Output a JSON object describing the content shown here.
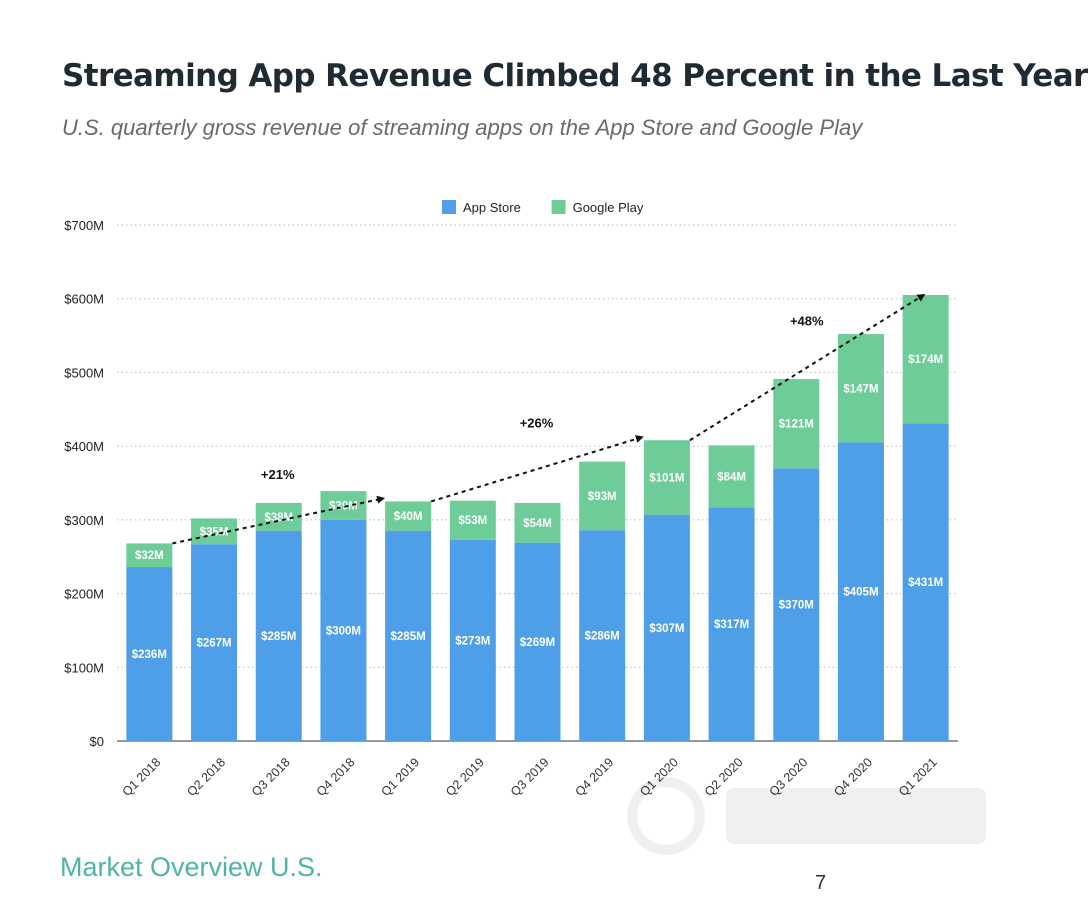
{
  "title": "Streaming App Revenue Climbed 48 Percent in the Last Year",
  "subtitle": "U.S. quarterly gross revenue of streaming apps on the App Store and Google Play",
  "footer": {
    "section": "Market Overview U.S.",
    "page_number": "7"
  },
  "colors": {
    "app_store": "#4e9fe8",
    "google_play": "#6dcc97",
    "title": "#1f2b33",
    "footer_text": "#4fb3a6"
  },
  "chart_data": {
    "type": "bar",
    "stacked": true,
    "title": "",
    "xlabel": "",
    "ylabel": "",
    "ylim": [
      0,
      700
    ],
    "y_ticks": [
      "$0",
      "$100M",
      "$200M",
      "$300M",
      "$400M",
      "$500M",
      "$600M",
      "$700M"
    ],
    "y_tick_values": [
      0,
      100,
      200,
      300,
      400,
      500,
      600,
      700
    ],
    "categories": [
      "Q1 2018",
      "Q2 2018",
      "Q3 2018",
      "Q4 2018",
      "Q1 2019",
      "Q2 2019",
      "Q3 2019",
      "Q4 2019",
      "Q1 2020",
      "Q2 2020",
      "Q3 2020",
      "Q4 2020",
      "Q1 2021"
    ],
    "legend_position": "top-center",
    "grid": true,
    "series": [
      {
        "name": "App Store",
        "color": "#4e9fe8",
        "values": [
          236,
          267,
          285,
          300,
          285,
          273,
          269,
          286,
          307,
          317,
          370,
          405,
          431
        ],
        "labels": [
          "$236M",
          "$267M",
          "$285M",
          "$300M",
          "$285M",
          "$273M",
          "$269M",
          "$286M",
          "$307M",
          "$317M",
          "$370M",
          "$405M",
          "$431M"
        ]
      },
      {
        "name": "Google Play",
        "color": "#6dcc97",
        "values": [
          32,
          35,
          38,
          39,
          40,
          53,
          54,
          93,
          101,
          84,
          121,
          147,
          174
        ],
        "labels": [
          "$32M",
          "$35M",
          "$38M",
          "$39M",
          "$40M",
          "$53M",
          "$54M",
          "$93M",
          "$101M",
          "$84M",
          "$121M",
          "$147M",
          "$174M"
        ]
      }
    ],
    "annotations": [
      {
        "text": "+21%",
        "from_category": 0,
        "to_category": 4
      },
      {
        "text": "+26%",
        "from_category": 4,
        "to_category": 8
      },
      {
        "text": "+48%",
        "from_category": 8,
        "to_category": 12
      }
    ]
  }
}
